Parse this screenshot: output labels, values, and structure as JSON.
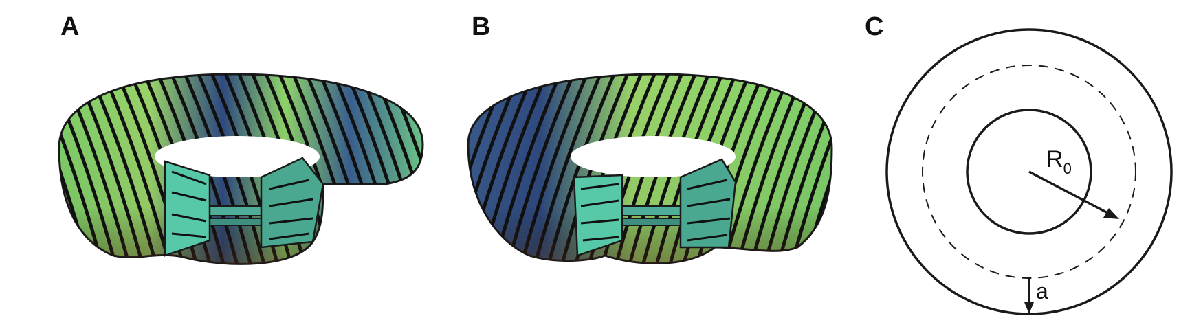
{
  "panels": [
    {
      "label": "A",
      "depiction": "torus-with-helical-windings"
    },
    {
      "label": "B",
      "depiction": "torus-with-helical-windings-mirrored"
    },
    {
      "label": "C",
      "depiction": "torus-cross-section-diagram"
    }
  ],
  "diagram": {
    "major_radius_symbol": "R",
    "major_radius_subscript": "0",
    "minor_radius_symbol": "a"
  },
  "colors": {
    "torus_green": "#8fd46a",
    "torus_teal": "#4fc9a0",
    "torus_blue": "#2a3f78",
    "torus_brown": "#6b4a35",
    "winding": "#111111",
    "outline": "#1a1a1a"
  }
}
